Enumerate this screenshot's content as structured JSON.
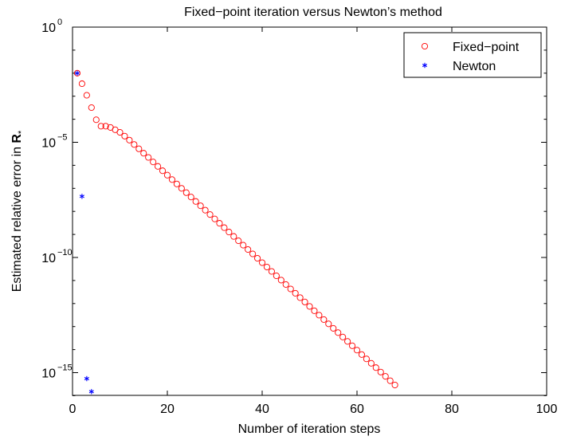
{
  "chart_data": {
    "type": "scatter",
    "title": "Fixed−point iteration versus Newton’s method",
    "xlabel": "Number of iteration steps",
    "ylabel_prefix": "Estimated relative error in ",
    "ylabel_symbol": "R",
    "ylabel_sub": "*",
    "xlim": [
      0,
      100
    ],
    "ylim_log10": [
      -16,
      0
    ],
    "yscale": "log",
    "grid": false,
    "legend_position": "top-right",
    "x_ticks": [
      {
        "value": 0,
        "label": "0"
      },
      {
        "value": 20,
        "label": "20"
      },
      {
        "value": 40,
        "label": "40"
      },
      {
        "value": 60,
        "label": "60"
      },
      {
        "value": 80,
        "label": "80"
      },
      {
        "value": 100,
        "label": "100"
      }
    ],
    "y_ticks": [
      {
        "exp10": 0,
        "base": "10",
        "exp": "0"
      },
      {
        "exp10": -5,
        "base": "10",
        "exp": "−5"
      },
      {
        "exp10": -10,
        "base": "10",
        "exp": "−10"
      },
      {
        "exp10": -15,
        "base": "10",
        "exp": "−15"
      }
    ],
    "series": [
      {
        "name": "Fixed−point",
        "marker": "circle",
        "color": "#ff0000",
        "points": [
          [
            1,
            0.01
          ],
          [
            2,
            0.0035
          ],
          [
            3,
            0.0011
          ],
          [
            4,
            0.00032
          ],
          [
            5,
            9.5e-05
          ],
          [
            6,
            5e-05
          ],
          [
            7,
            5e-05
          ],
          [
            8,
            4.4e-05
          ],
          [
            9,
            3.5e-05
          ],
          [
            10,
            2.7e-05
          ],
          [
            11,
            1.85e-05
          ],
          [
            12,
            1.24e-05
          ],
          [
            13,
            8e-06
          ],
          [
            14,
            5.2e-06
          ],
          [
            15,
            3.35e-06
          ],
          [
            16,
            2.2e-06
          ],
          [
            17,
            1.4e-06
          ],
          [
            18,
            9e-07
          ],
          [
            19,
            5.8e-07
          ],
          [
            20,
            3.75e-07
          ],
          [
            21,
            2.4e-07
          ],
          [
            22,
            1.55e-07
          ],
          [
            23,
            1e-07
          ],
          [
            24,
            6.5e-08
          ],
          [
            25,
            4.2e-08
          ],
          [
            26,
            2.7e-08
          ],
          [
            27,
            1.75e-08
          ],
          [
            28,
            1.13e-08
          ],
          [
            29,
            7.3e-09
          ],
          [
            30,
            4.7e-09
          ],
          [
            31,
            3.05e-09
          ],
          [
            32,
            1.97e-09
          ],
          [
            33,
            1.27e-09
          ],
          [
            34,
            8.2e-10
          ],
          [
            35,
            5.3e-10
          ],
          [
            36,
            3.42e-10
          ],
          [
            37,
            2.21e-10
          ],
          [
            38,
            1.43e-10
          ],
          [
            39,
            9.2e-11
          ],
          [
            40,
            5.95e-11
          ],
          [
            41,
            3.84e-11
          ],
          [
            42,
            2.48e-11
          ],
          [
            43,
            1.6e-11
          ],
          [
            44,
            1.04e-11
          ],
          [
            45,
            6.7e-12
          ],
          [
            46,
            4.3e-12
          ],
          [
            47,
            2.8e-12
          ],
          [
            48,
            1.8e-12
          ],
          [
            49,
            1.17e-12
          ],
          [
            50,
            7.5e-13
          ],
          [
            51,
            4.85e-13
          ],
          [
            52,
            3.13e-13
          ],
          [
            53,
            2.02e-13
          ],
          [
            54,
            1.31e-13
          ],
          [
            55,
            8.4e-14
          ],
          [
            56,
            5.45e-14
          ],
          [
            57,
            3.52e-14
          ],
          [
            58,
            2.27e-14
          ],
          [
            59,
            1.47e-14
          ],
          [
            60,
            9.5e-15
          ],
          [
            61,
            6.1e-15
          ],
          [
            62,
            3.95e-15
          ],
          [
            63,
            2.55e-15
          ],
          [
            64,
            1.65e-15
          ],
          [
            65,
            1.06e-15
          ],
          [
            66,
            6.9e-16
          ],
          [
            67,
            4.45e-16
          ],
          [
            68,
            2.9e-16
          ]
        ]
      },
      {
        "name": "Newton",
        "marker": "asterisk",
        "color": "#0000ff",
        "points": [
          [
            1,
            0.01
          ],
          [
            2,
            4.5e-08
          ],
          [
            3,
            5.5e-16
          ],
          [
            4,
            1.5e-16
          ]
        ]
      }
    ]
  }
}
